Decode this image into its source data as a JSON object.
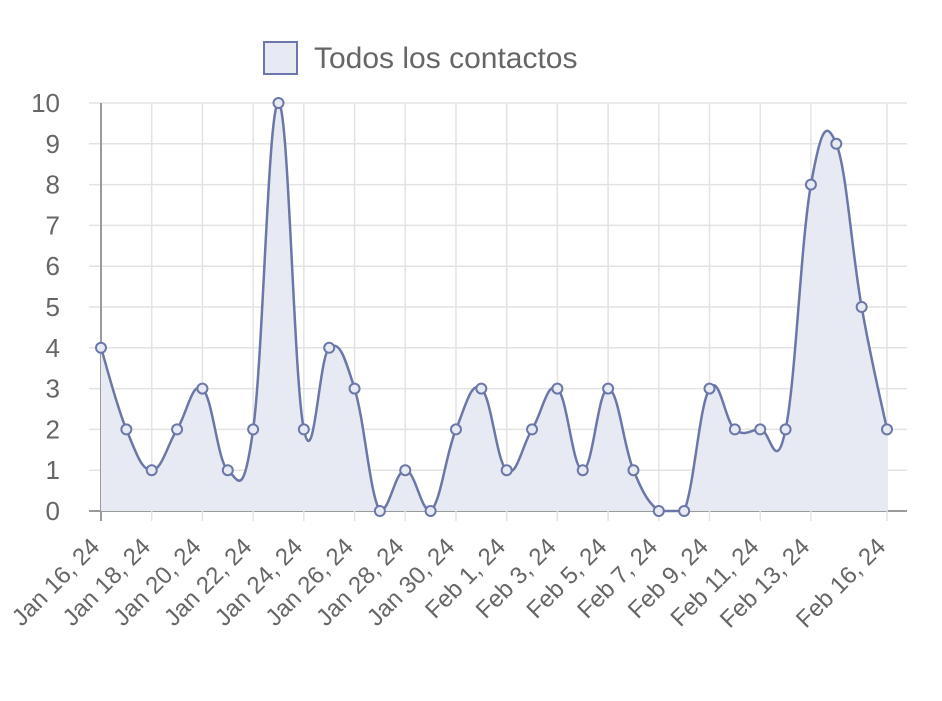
{
  "chart_data": {
    "type": "area",
    "title": "",
    "xlabel": "",
    "ylabel": "",
    "ylim": [
      0,
      10
    ],
    "y_ticks": [
      0,
      1,
      2,
      3,
      4,
      5,
      6,
      7,
      8,
      9,
      10
    ],
    "grid": true,
    "legend_position": "top-center",
    "x_tick_labels": [
      "Jan 16, 24",
      "Jan 18, 24",
      "Jan 20, 24",
      "Jan 22, 24",
      "Jan 24, 24",
      "Jan 26, 24",
      "Jan 28, 24",
      "Jan 30, 24",
      "Feb 1, 24",
      "Feb 3, 24",
      "Feb 5, 24",
      "Feb 7, 24",
      "Feb 9, 24",
      "Feb 11, 24",
      "Feb 13, 24",
      "Feb 16, 24"
    ],
    "x": [
      "Jan 16, 24",
      "Jan 17, 24",
      "Jan 18, 24",
      "Jan 19, 24",
      "Jan 20, 24",
      "Jan 21, 24",
      "Jan 22, 24",
      "Jan 23, 24",
      "Jan 24, 24",
      "Jan 25, 24",
      "Jan 26, 24",
      "Jan 27, 24",
      "Jan 28, 24",
      "Jan 29, 24",
      "Jan 30, 24",
      "Jan 31, 24",
      "Feb 1, 24",
      "Feb 2, 24",
      "Feb 3, 24",
      "Feb 4, 24",
      "Feb 5, 24",
      "Feb 6, 24",
      "Feb 7, 24",
      "Feb 8, 24",
      "Feb 9, 24",
      "Feb 10, 24",
      "Feb 11, 24",
      "Feb 12, 24",
      "Feb 13, 24",
      "Feb 14, 24",
      "Feb 15, 24",
      "Feb 16, 24"
    ],
    "series": [
      {
        "name": "Todos los contactos",
        "values": [
          4,
          2,
          1,
          2,
          3,
          1,
          2,
          10,
          2,
          4,
          3,
          0,
          1,
          0,
          2,
          3,
          1,
          2,
          3,
          1,
          3,
          1,
          0,
          0,
          3,
          2,
          2,
          2,
          8,
          9,
          5,
          2
        ]
      }
    ],
    "colors": {
      "line": "#6b77a8",
      "fill": "#e8eaf3",
      "grid": "#e3e3e3",
      "axis": "#9a9a9a",
      "point_fill": "#e8eaf3"
    }
  }
}
